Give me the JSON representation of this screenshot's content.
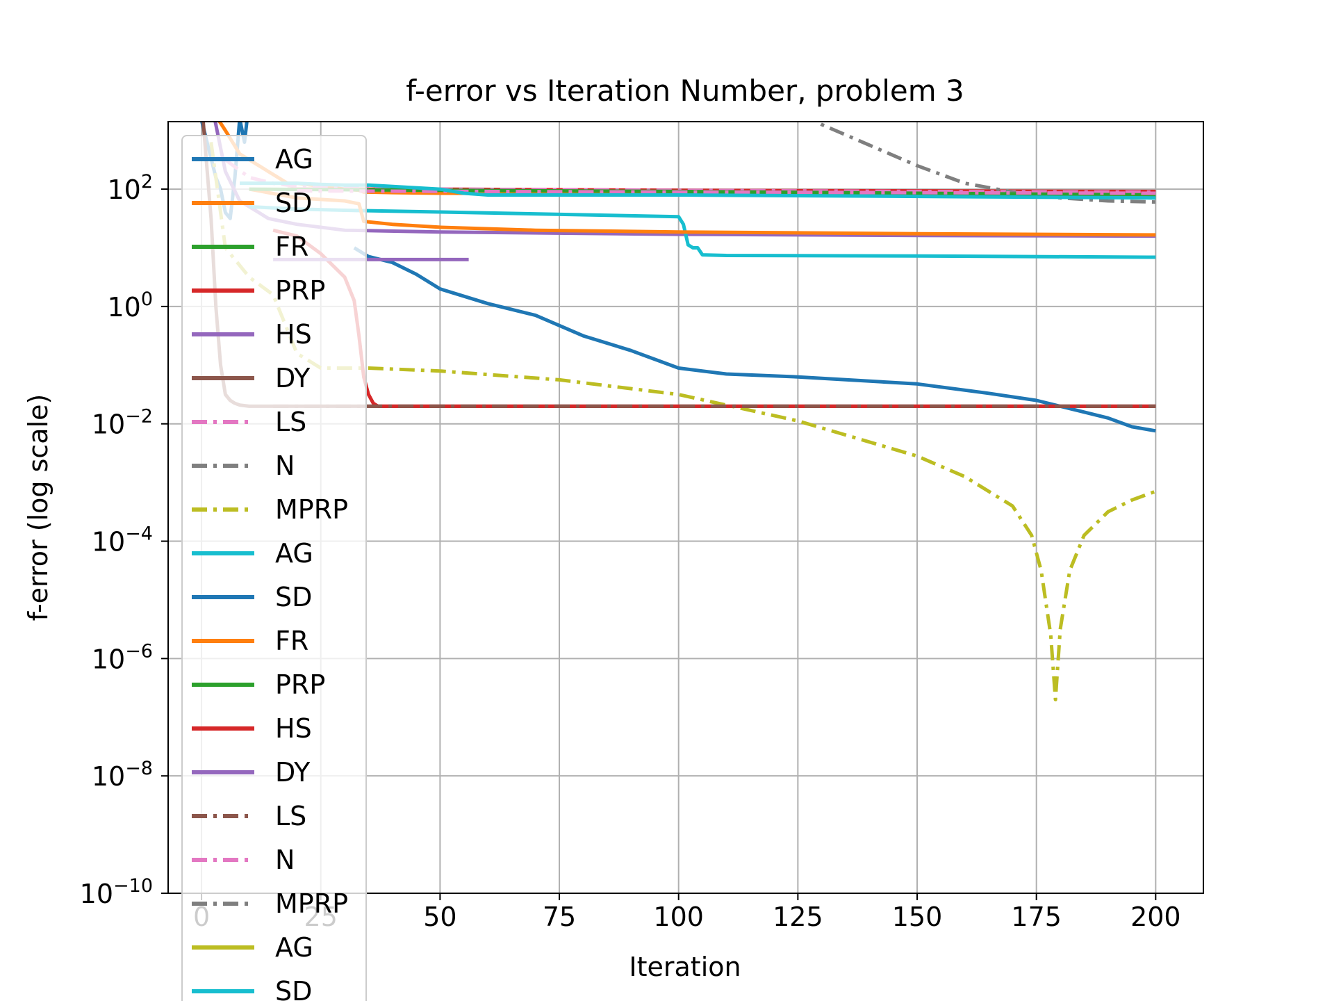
{
  "chart_data": {
    "type": "line",
    "title": "f-error vs Iteration Number, problem 3",
    "xlabel": "Iteration",
    "ylabel": "f-error (log scale)",
    "xlim": [
      -7,
      210
    ],
    "ylim_log10": [
      -10,
      3.15
    ],
    "y_scale": "log",
    "grid": true,
    "legend_position": "upper-left (overflowing bottom)",
    "x_ticks": [
      0,
      25,
      50,
      75,
      100,
      125,
      150,
      175,
      200
    ],
    "y_tick_exponents": [
      2,
      0,
      -2,
      -4,
      -6,
      -8,
      -10
    ],
    "series": [
      {
        "name": "AG",
        "color": "#1f77b4",
        "dash": "solid",
        "x": [
          -1,
          3,
          4,
          5,
          6,
          7,
          8,
          9,
          10
        ],
        "log10_y": [
          3.5,
          2.2,
          2.0,
          1.6,
          1.5,
          2.2,
          3.2,
          2.8,
          3.5
        ]
      },
      {
        "name": "SD",
        "color": "#ff7f0e",
        "dash": "solid",
        "x": [
          1,
          5,
          8,
          14,
          18,
          20,
          25,
          30,
          33,
          34,
          40,
          50,
          100,
          108
        ],
        "log10_y": [
          3.5,
          3.0,
          2.6,
          2.3,
          2.1,
          2.1,
          2.05,
          2.0,
          1.98,
          1.95,
          1.94,
          1.93,
          1.92,
          1.91
        ]
      },
      {
        "name": "FR",
        "color": "#2ca02c",
        "dash": "solid",
        "x": [
          100,
          200
        ],
        "log10_y": [
          1.95,
          1.85
        ]
      },
      {
        "name": "PRP",
        "color": "#d62728",
        "dash": "solid",
        "x": [
          18,
          50,
          100,
          200
        ],
        "log10_y": [
          2.0,
          2.0,
          1.98,
          1.96
        ]
      },
      {
        "name": "HS",
        "color": "#9467bd",
        "dash": "solid",
        "x": [
          2,
          5,
          8,
          12,
          14,
          20,
          30,
          50,
          100,
          150,
          200
        ],
        "log10_y": [
          3.5,
          2.3,
          1.8,
          1.6,
          1.5,
          1.4,
          1.3,
          1.27,
          1.23,
          1.21,
          1.2
        ]
      },
      {
        "name": "DY",
        "color": "#8c564b",
        "dash": "solid",
        "x": [
          0,
          1,
          2,
          3,
          4,
          5,
          6,
          7,
          8,
          10,
          12,
          15,
          200
        ],
        "log10_y": [
          3.5,
          2.5,
          1.5,
          0.0,
          -1.0,
          -1.5,
          -1.6,
          -1.65,
          -1.68,
          -1.7,
          -1.7,
          -1.7,
          -1.7
        ]
      },
      {
        "name": "LS",
        "color": "#e377c2",
        "dash": "dashdot",
        "x": [
          5,
          10,
          15,
          20,
          50,
          100,
          150,
          200
        ],
        "log10_y": [
          2.5,
          2.2,
          2.1,
          2.05,
          2.0,
          1.98,
          1.96,
          1.95
        ]
      },
      {
        "name": "N",
        "color": "#7f7f7f",
        "dash": "dashdot",
        "x": [
          126,
          130,
          140,
          150,
          160,
          170,
          180,
          190,
          200
        ],
        "log10_y": [
          3.3,
          3.1,
          2.75,
          2.4,
          2.1,
          1.95,
          1.85,
          1.8,
          1.78
        ]
      },
      {
        "name": "MPRP",
        "color": "#bcbd22",
        "dash": "dashdot",
        "x": [
          2,
          5,
          8,
          10,
          15,
          20,
          25,
          30,
          35,
          50,
          75,
          100,
          125,
          150,
          160,
          170,
          174,
          176,
          178,
          179,
          180,
          182,
          185,
          190,
          195,
          200
        ],
        "log10_y": [
          2.8,
          1.0,
          0.7,
          0.5,
          0.2,
          -0.8,
          -1.05,
          -1.05,
          -1.05,
          -1.1,
          -1.25,
          -1.5,
          -1.95,
          -2.55,
          -2.9,
          -3.4,
          -3.9,
          -4.5,
          -5.6,
          -6.7,
          -5.5,
          -4.5,
          -3.9,
          -3.5,
          -3.3,
          -3.15
        ]
      },
      {
        "name": "AG",
        "color": "#17becf",
        "dash": "solid",
        "x": [
          10,
          20,
          30,
          50,
          100,
          101,
          102,
          103,
          104,
          105,
          110,
          150,
          200
        ],
        "log10_y": [
          1.7,
          1.66,
          1.64,
          1.61,
          1.53,
          1.4,
          1.05,
          1.0,
          1.0,
          0.88,
          0.87,
          0.86,
          0.84
        ]
      },
      {
        "name": "SD",
        "color": "#1f77b4",
        "dash": "solid",
        "x": [
          32,
          35,
          40,
          45,
          50,
          60,
          70,
          80,
          90,
          100,
          110,
          125,
          150,
          165,
          175,
          185,
          190,
          195,
          200
        ],
        "log10_y": [
          1.0,
          0.85,
          0.75,
          0.55,
          0.3,
          0.05,
          -0.15,
          -0.5,
          -0.75,
          -1.05,
          -1.15,
          -1.2,
          -1.32,
          -1.48,
          -1.6,
          -1.8,
          -1.9,
          -2.05,
          -2.12
        ]
      },
      {
        "name": "FR",
        "color": "#ff7f0e",
        "dash": "solid",
        "x": [
          10,
          20,
          30,
          33,
          34,
          40,
          50,
          70,
          100,
          150,
          200
        ],
        "log10_y": [
          2.0,
          1.85,
          1.8,
          1.75,
          1.45,
          1.4,
          1.35,
          1.3,
          1.27,
          1.24,
          1.22
        ]
      },
      {
        "name": "PRP",
        "color": "#2ca02c",
        "dash": "solid",
        "x": [
          10,
          50,
          100,
          150,
          200
        ],
        "log10_y": [
          2.0,
          1.98,
          1.96,
          1.93,
          1.9
        ]
      },
      {
        "name": "HS",
        "color": "#d62728",
        "dash": "solid",
        "x": [
          15,
          20,
          25,
          30,
          32,
          33,
          34,
          35,
          36,
          37,
          40,
          100,
          200
        ],
        "log10_y": [
          1.3,
          1.2,
          0.9,
          0.5,
          0.1,
          -0.5,
          -1.2,
          -1.5,
          -1.65,
          -1.7,
          -1.7,
          -1.7,
          -1.7
        ]
      },
      {
        "name": "DY",
        "color": "#9467bd",
        "dash": "solid",
        "x": [
          15,
          30,
          56
        ],
        "log10_y": [
          0.8,
          0.8,
          0.8
        ]
      },
      {
        "name": "LS",
        "color": "#8c564b",
        "dash": "dashdot",
        "x": [
          15,
          200
        ],
        "log10_y": [
          -1.7,
          -1.7
        ]
      },
      {
        "name": "N",
        "color": "#e377c2",
        "dash": "dashdot",
        "x": [
          20,
          100,
          200
        ],
        "log10_y": [
          1.97,
          1.95,
          1.93
        ]
      },
      {
        "name": "MPRP",
        "color": "#7f7f7f",
        "dash": "dashdot",
        "x": [],
        "log10_y": []
      },
      {
        "name": "AG",
        "color": "#bcbd22",
        "dash": "solid",
        "x": [],
        "log10_y": []
      },
      {
        "name": "SD",
        "color": "#17becf",
        "dash": "solid",
        "x": [
          8,
          20,
          25,
          30,
          35,
          50,
          55,
          60,
          100,
          200
        ],
        "log10_y": [
          2.1,
          2.1,
          2.08,
          2.07,
          2.07,
          2.0,
          1.93,
          1.9,
          1.9,
          1.85
        ]
      }
    ]
  }
}
